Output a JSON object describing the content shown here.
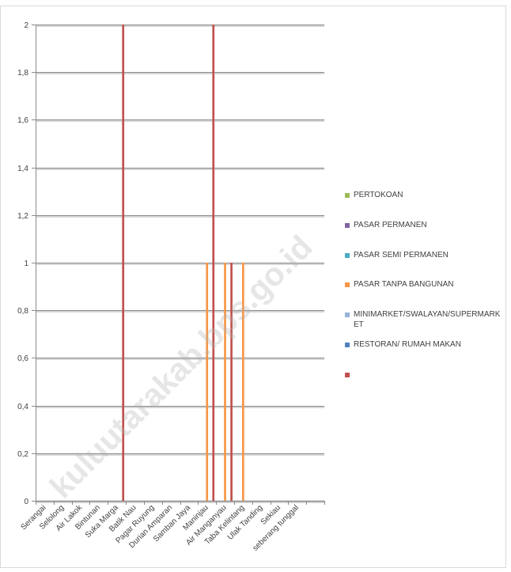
{
  "watermark": "kuluutarakab.bps.go.id",
  "chart_data": {
    "type": "bar",
    "title": "",
    "xlabel": "",
    "ylabel": "",
    "ylim": [
      0,
      2
    ],
    "ytick_labels": [
      "0",
      "0,2",
      "0,4",
      "0,6",
      "0,8",
      "1",
      "1,2",
      "1,4",
      "1,6",
      "1,8",
      "2"
    ],
    "grid": true,
    "legend_position": "right",
    "categories": [
      "Serangai",
      "Selolong",
      "Air Lakok",
      "Bintunan",
      "Suka Marga",
      "Batik Nau",
      "Pagar Ruyung",
      "Durian Amparan",
      "Samban Jaya",
      "Maninjau",
      "Air Manganyau",
      "Taba Kelintang",
      "Ulak Tanding",
      "Sekiau",
      "seberang tunggal",
      ""
    ],
    "series": [
      {
        "name": "PERTOKOAN",
        "color": "#9BBB59",
        "values": [
          0,
          0,
          0,
          0,
          0,
          0,
          0,
          0,
          0,
          0,
          0,
          0,
          0,
          0,
          0,
          0
        ]
      },
      {
        "name": "PASAR PERMANEN",
        "color": "#8064A2",
        "values": [
          0,
          0,
          0,
          0,
          0,
          0,
          0,
          0,
          0,
          0,
          0,
          0,
          0,
          0,
          0,
          0
        ]
      },
      {
        "name": "PASAR SEMI PERMANEN",
        "color": "#4BACC6",
        "values": [
          0,
          0,
          0,
          0,
          0,
          0,
          0,
          0,
          0,
          0,
          0,
          0,
          0,
          0,
          0,
          0
        ]
      },
      {
        "name": "PASAR TANPA BANGUNAN",
        "color": "#F79646",
        "values": [
          0,
          0,
          0,
          0,
          0,
          0,
          0,
          0,
          0,
          1,
          1,
          1,
          0,
          0,
          0,
          0
        ]
      },
      {
        "name": "MINIMARKET/SWALAYAN/SUPERMARKET",
        "color": "#95B3D7",
        "values": [
          0,
          0,
          0,
          0,
          0,
          0,
          0,
          0,
          0,
          0,
          0,
          0,
          0,
          0,
          0,
          0
        ]
      },
      {
        "name": "RESTORAN/ RUMAH MAKAN",
        "color": "#4F81BD",
        "values": [
          0,
          0,
          0,
          0,
          0,
          0,
          0,
          0,
          0,
          0,
          0,
          0,
          0,
          0,
          0,
          0
        ]
      },
      {
        "name": "",
        "color": "#C0504D",
        "values": [
          0,
          0,
          0,
          0,
          2,
          0,
          0,
          0,
          0,
          2,
          1,
          0,
          0,
          0,
          0,
          0
        ]
      }
    ]
  }
}
